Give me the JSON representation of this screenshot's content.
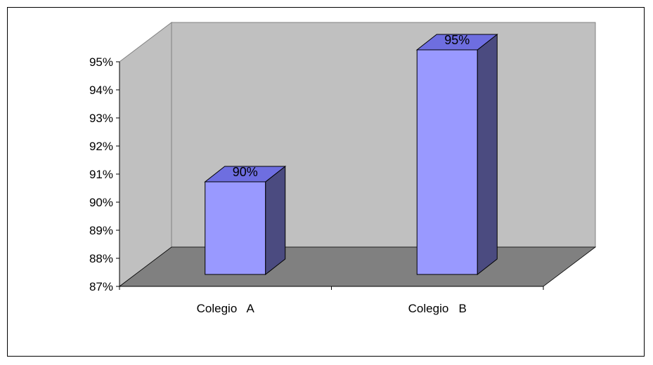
{
  "chart_data": {
    "type": "bar",
    "style": "3d-column",
    "categories": [
      "Colegio   A",
      "Colegio   B"
    ],
    "values": [
      90.3,
      95.0
    ],
    "data_labels": [
      "90%",
      "95%"
    ],
    "ylim": [
      87,
      95
    ],
    "y_ticks": [
      "87%",
      "88%",
      "89%",
      "90%",
      "91%",
      "92%",
      "93%",
      "94%",
      "95%"
    ],
    "grid": false,
    "legend": "none",
    "colors": {
      "bar_front": "#9999ff",
      "bar_top": "#6e6ee0",
      "bar_side": "#4b4b80",
      "back_wall": "#c0c0c0",
      "side_wall": "#c0c0c0",
      "floor": "#808080"
    }
  }
}
